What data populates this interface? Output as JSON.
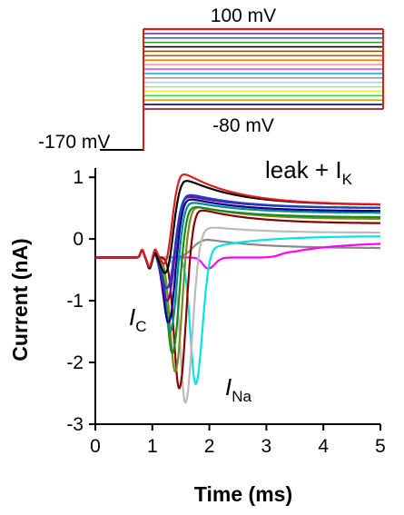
{
  "chart_data": [
    {
      "type": "line",
      "panel": "voltage-protocol",
      "holding_label": "-170 mV",
      "step_top_label": "100 mV",
      "step_bottom_label": "-80 mV",
      "holding_mV": -170,
      "steps_mV": [
        100,
        90,
        80,
        70,
        60,
        50,
        40,
        30,
        20,
        10,
        0,
        -10,
        -20,
        -30,
        -40,
        -50,
        -60,
        -70,
        -80
      ],
      "step_colors": [
        "#e31a1c",
        "#6a3d9a",
        "#1f78b4",
        "#33a02c",
        "#000000",
        "#8c510a",
        "#b15928",
        "#ff7f00",
        "#fb9a99",
        "#ff33cc",
        "#00bfbf",
        "#999999",
        "#a6cee3",
        "#b2df8a",
        "#f0e442",
        "#00ff00",
        "#d9a400",
        "#000080",
        "#7f0000"
      ]
    },
    {
      "type": "line",
      "panel": "current-traces",
      "xlabel": "Time (ms)",
      "ylabel": "Current (nA)",
      "xlim": [
        0,
        5
      ],
      "ylim": [
        -3,
        1.2
      ],
      "xticks": [
        "0",
        "1",
        "2",
        "3",
        "4",
        "5"
      ],
      "yticks": [
        "1",
        "0",
        "-1",
        "-2",
        "-3"
      ],
      "annotations": {
        "leak_k": "leak + I",
        "leak_k_sub": "K",
        "ic": "I",
        "ic_sub": "C",
        "ina": "I",
        "ina_sub": "Na"
      },
      "baseline_nA": -0.3,
      "series": [
        {
          "color": "#888888",
          "peak_t": 1.95,
          "peak": 0.0,
          "na_t": 0.0,
          "na_min": 0.0,
          "end": -0.15,
          "ic": 0.9
        },
        {
          "color": "#ff00ff",
          "peak_t": 3.5,
          "peak": -0.2,
          "na_t": 1.98,
          "na_min": -0.48,
          "end": -0.05,
          "ic": 0.9
        },
        {
          "color": "#00e5e5",
          "peak_t": 2.2,
          "peak": -0.1,
          "na_t": 1.76,
          "na_min": -2.35,
          "end": 0.05,
          "ic": 1.0
        },
        {
          "color": "#bbbbbb",
          "peak_t": 2.0,
          "peak": 0.2,
          "na_t": 1.58,
          "na_min": -2.65,
          "end": 0.1,
          "ic": 1.0
        },
        {
          "color": "#8b0000",
          "peak_t": 1.8,
          "peak": 0.5,
          "na_t": 1.47,
          "na_min": -2.42,
          "end": 0.25,
          "ic": 1.0
        },
        {
          "color": "#7a8c1e",
          "peak_t": 1.72,
          "peak": 0.55,
          "na_t": 1.4,
          "na_min": -2.15,
          "end": 0.32,
          "ic": 1.0
        },
        {
          "color": "#1a8a1a",
          "peak_t": 1.66,
          "peak": 0.55,
          "na_t": 1.35,
          "na_min": -1.85,
          "end": 0.35,
          "ic": 1.0
        },
        {
          "color": "#008b8b",
          "peak_t": 1.62,
          "peak": 0.62,
          "na_t": 1.31,
          "na_min": -1.5,
          "end": 0.42,
          "ic": 1.0
        },
        {
          "color": "#00008b",
          "peak_t": 1.58,
          "peak": 0.68,
          "na_t": 1.28,
          "na_min": -1.35,
          "end": 0.45,
          "ic": 1.0
        },
        {
          "color": "#6a0dad",
          "peak_t": 1.56,
          "peak": 0.72,
          "na_t": 1.26,
          "na_min": -1.0,
          "end": 0.5,
          "ic": 1.0
        },
        {
          "color": "#1f3fbf",
          "peak_t": 1.6,
          "peak": 0.75,
          "na_t": 1.25,
          "na_min": -0.8,
          "end": 0.5,
          "ic": 1.0
        },
        {
          "color": "#000000",
          "peak_t": 1.55,
          "peak": 1.0,
          "na_t": 1.22,
          "na_min": -0.55,
          "end": 0.55,
          "ic": 1.0
        },
        {
          "color": "#e31a1c",
          "peak_t": 1.5,
          "peak": 1.12,
          "na_t": 1.2,
          "na_min": -0.4,
          "end": 0.55,
          "ic": 1.0
        }
      ]
    }
  ]
}
